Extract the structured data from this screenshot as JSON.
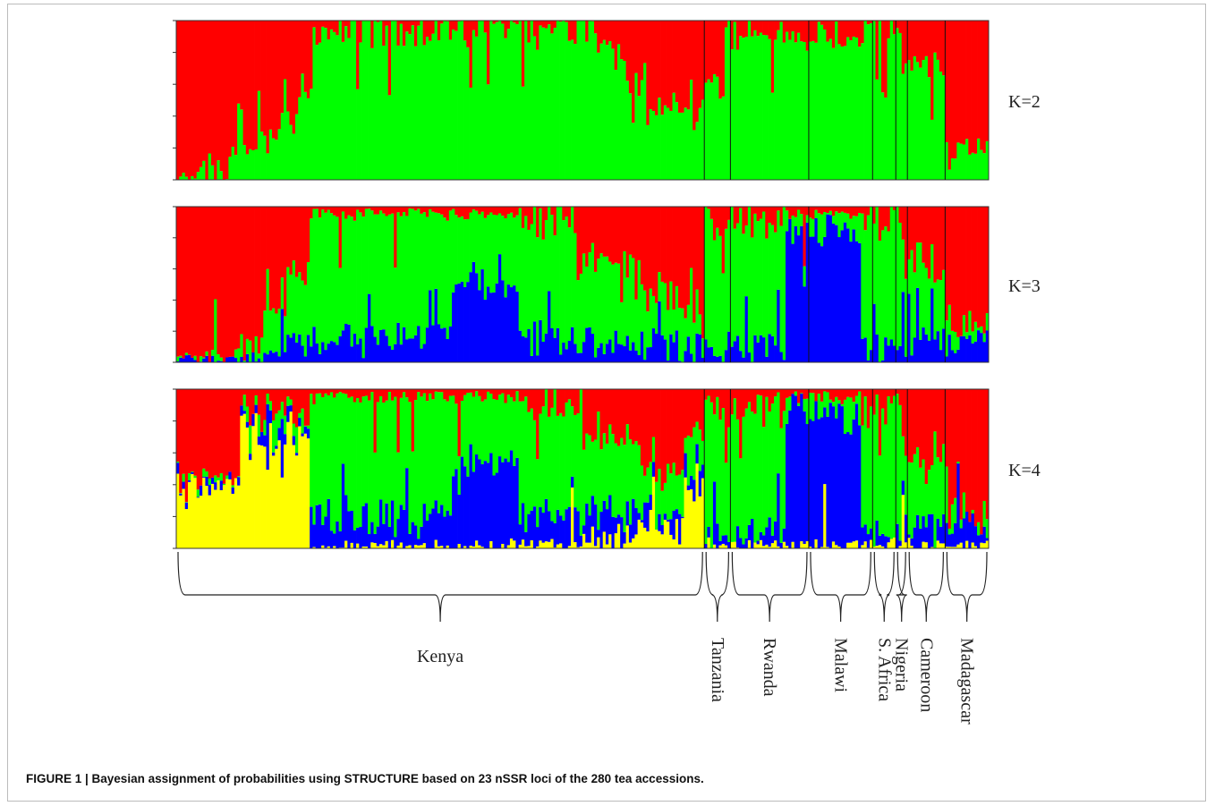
{
  "caption": "FIGURE 1 | Bayesian assignment of probabilities using STRUCTURE based on 23 nSSR loci of the 280 tea accessions.",
  "chart_data": {
    "type": "bar",
    "stacked": true,
    "n_individuals": 280,
    "ylim": [
      0,
      1
    ],
    "cluster_colors": [
      "#ff0000",
      "#00ff00",
      "#0000ff",
      "#ffff00"
    ],
    "panels": [
      {
        "label": "K=2",
        "k": 2,
        "segments": [
          {
            "start": 0,
            "end": 8,
            "q": [
              0.98,
              0.02
            ]
          },
          {
            "start": 8,
            "end": 18,
            "q": [
              0.93,
              0.07
            ]
          },
          {
            "start": 18,
            "end": 28,
            "q": [
              0.85,
              0.15
            ]
          },
          {
            "start": 28,
            "end": 36,
            "q": [
              0.75,
              0.25
            ]
          },
          {
            "start": 36,
            "end": 42,
            "q": [
              0.6,
              0.4
            ]
          },
          {
            "start": 42,
            "end": 46,
            "q": [
              0.45,
              0.55
            ]
          },
          {
            "start": 46,
            "end": 145,
            "q": [
              0.07,
              0.93
            ]
          },
          {
            "start": 145,
            "end": 155,
            "q": [
              0.2,
              0.8
            ]
          },
          {
            "start": 155,
            "end": 163,
            "q": [
              0.4,
              0.6
            ]
          },
          {
            "start": 163,
            "end": 173,
            "q": [
              0.55,
              0.45
            ]
          },
          {
            "start": 173,
            "end": 182,
            "q": [
              0.6,
              0.4
            ]
          },
          {
            "start": 182,
            "end": 189,
            "q": [
              0.45,
              0.55
            ]
          },
          {
            "start": 189,
            "end": 202,
            "q": [
              0.1,
              0.9
            ]
          },
          {
            "start": 202,
            "end": 210,
            "q": [
              0.12,
              0.88
            ]
          },
          {
            "start": 210,
            "end": 230,
            "q": [
              0.1,
              0.9
            ]
          },
          {
            "start": 230,
            "end": 236,
            "q": [
              0.08,
              0.92
            ]
          },
          {
            "start": 236,
            "end": 250,
            "q": [
              0.07,
              0.93
            ]
          },
          {
            "start": 250,
            "end": 265,
            "q": [
              0.3,
              0.7
            ]
          },
          {
            "start": 265,
            "end": 280,
            "q": [
              0.8,
              0.2
            ]
          }
        ]
      },
      {
        "label": "K=3",
        "k": 3,
        "segments": [
          {
            "start": 0,
            "end": 20,
            "q": [
              0.97,
              0.01,
              0.02
            ]
          },
          {
            "start": 20,
            "end": 30,
            "q": [
              0.9,
              0.07,
              0.03
            ]
          },
          {
            "start": 30,
            "end": 38,
            "q": [
              0.7,
              0.25,
              0.05
            ]
          },
          {
            "start": 38,
            "end": 46,
            "q": [
              0.45,
              0.45,
              0.1
            ]
          },
          {
            "start": 46,
            "end": 95,
            "q": [
              0.05,
              0.8,
              0.15
            ]
          },
          {
            "start": 95,
            "end": 118,
            "q": [
              0.05,
              0.45,
              0.5
            ]
          },
          {
            "start": 118,
            "end": 140,
            "q": [
              0.1,
              0.75,
              0.15
            ]
          },
          {
            "start": 140,
            "end": 160,
            "q": [
              0.35,
              0.5,
              0.15
            ]
          },
          {
            "start": 160,
            "end": 175,
            "q": [
              0.6,
              0.3,
              0.1
            ]
          },
          {
            "start": 175,
            "end": 182,
            "q": [
              0.65,
              0.25,
              0.1
            ]
          },
          {
            "start": 182,
            "end": 210,
            "q": [
              0.1,
              0.8,
              0.1
            ]
          },
          {
            "start": 210,
            "end": 230,
            "q": [
              0.05,
              0.1,
              0.85
            ]
          },
          {
            "start": 230,
            "end": 236,
            "q": [
              0.05,
              0.15,
              0.8
            ]
          },
          {
            "start": 236,
            "end": 250,
            "q": [
              0.1,
              0.8,
              0.1
            ]
          },
          {
            "start": 250,
            "end": 265,
            "q": [
              0.4,
              0.45,
              0.15
            ]
          },
          {
            "start": 265,
            "end": 280,
            "q": [
              0.75,
              0.1,
              0.15
            ]
          }
        ]
      },
      {
        "label": "K=4",
        "k": 4,
        "segments": [
          {
            "start": 0,
            "end": 22,
            "q": [
              0.55,
              0.02,
              0.03,
              0.4
            ]
          },
          {
            "start": 22,
            "end": 46,
            "q": [
              0.15,
              0.1,
              0.05,
              0.7
            ]
          },
          {
            "start": 46,
            "end": 95,
            "q": [
              0.05,
              0.75,
              0.18,
              0.02
            ]
          },
          {
            "start": 95,
            "end": 118,
            "q": [
              0.05,
              0.4,
              0.53,
              0.02
            ]
          },
          {
            "start": 118,
            "end": 140,
            "q": [
              0.1,
              0.7,
              0.17,
              0.03
            ]
          },
          {
            "start": 140,
            "end": 160,
            "q": [
              0.3,
              0.45,
              0.15,
              0.1
            ]
          },
          {
            "start": 160,
            "end": 175,
            "q": [
              0.5,
              0.25,
              0.1,
              0.15
            ]
          },
          {
            "start": 175,
            "end": 182,
            "q": [
              0.35,
              0.2,
              0.1,
              0.35
            ]
          },
          {
            "start": 182,
            "end": 210,
            "q": [
              0.15,
              0.75,
              0.08,
              0.02
            ]
          },
          {
            "start": 210,
            "end": 230,
            "q": [
              0.05,
              0.1,
              0.83,
              0.02
            ]
          },
          {
            "start": 230,
            "end": 236,
            "q": [
              0.05,
              0.15,
              0.78,
              0.02
            ]
          },
          {
            "start": 236,
            "end": 250,
            "q": [
              0.15,
              0.75,
              0.07,
              0.03
            ]
          },
          {
            "start": 250,
            "end": 265,
            "q": [
              0.45,
              0.4,
              0.12,
              0.03
            ]
          },
          {
            "start": 265,
            "end": 280,
            "q": [
              0.75,
              0.1,
              0.13,
              0.02
            ]
          }
        ]
      }
    ],
    "populations": [
      {
        "name": "Kenya",
        "start": 0,
        "end": 182
      },
      {
        "name": "Tanzania",
        "start": 182,
        "end": 191
      },
      {
        "name": "Rwanda",
        "start": 191,
        "end": 218
      },
      {
        "name": "Malawi",
        "start": 218,
        "end": 240
      },
      {
        "name": "S. Africa",
        "start": 240,
        "end": 248
      },
      {
        "name": "Nigeria",
        "start": 248,
        "end": 252
      },
      {
        "name": "Cameroon",
        "start": 252,
        "end": 265
      },
      {
        "name": "Madagascar",
        "start": 265,
        "end": 280
      }
    ]
  }
}
